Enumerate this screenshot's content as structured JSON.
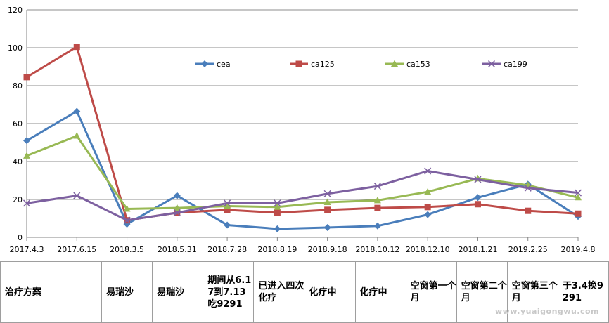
{
  "chart_data": {
    "type": "line",
    "title": "",
    "xlabel": "",
    "ylabel": "",
    "ylim": [
      0,
      120
    ],
    "yticks": [
      0,
      20,
      40,
      60,
      80,
      100,
      120
    ],
    "grid": true,
    "legend_position": "top-right",
    "categories": [
      "2017.4.3",
      "2017.6.15",
      "2018.3.5",
      "2018.5.31",
      "2018.7.28",
      "2018.8.19",
      "2018.9.18",
      "2018.10.12",
      "2018.12.10",
      "2018.1.21",
      "2019.2.25",
      "2019.4.8"
    ],
    "series": [
      {
        "name": "cea",
        "color": "#4a7ebb",
        "marker": "diamond",
        "values": [
          51,
          66.5,
          7,
          22,
          6.5,
          4.5,
          5.2,
          6,
          12,
          21,
          28,
          11
        ]
      },
      {
        "name": "ca125",
        "color": "#be4b48",
        "marker": "square",
        "values": [
          84.5,
          100.5,
          9,
          13,
          14.5,
          13,
          14.5,
          15.5,
          16,
          17.5,
          14,
          12.5
        ]
      },
      {
        "name": "ca153",
        "color": "#98b954",
        "marker": "triangle",
        "values": [
          43,
          53.5,
          15,
          15.5,
          16.5,
          16,
          18.5,
          19.5,
          24,
          31,
          27.5,
          21
        ]
      },
      {
        "name": "ca199",
        "color": "#7d60a0",
        "marker": "x",
        "values": [
          18,
          22,
          9,
          13,
          18,
          18,
          23,
          27,
          35,
          30.5,
          26,
          23.5
        ]
      }
    ]
  },
  "table": {
    "cells": [
      "治疗方案",
      "",
      "易瑞沙",
      "易瑞沙",
      "期间从6.17到7.13吃9291",
      "已进入四次化疗",
      "化疗中",
      "化疗中",
      "空窗第一个月",
      "空窗第二个月",
      "空窗第三个月",
      "于3.4换9291"
    ]
  },
  "watermark": "www.yuaigongwu.com"
}
